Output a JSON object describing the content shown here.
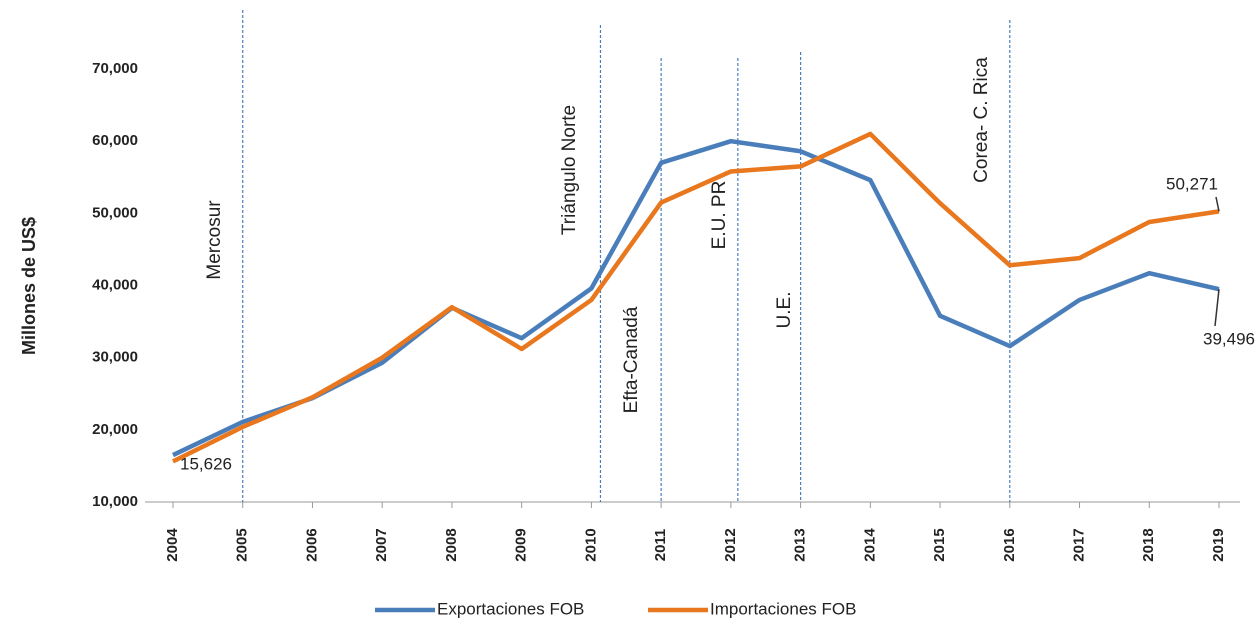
{
  "chart_data": {
    "type": "line",
    "y_label": "Millones de US$",
    "x": [
      2004,
      2005,
      2006,
      2007,
      2008,
      2009,
      2010,
      2011,
      2012,
      2013,
      2014,
      2015,
      2016,
      2017,
      2018,
      2019
    ],
    "xlim": [
      2004,
      2019
    ],
    "xticks": [
      2004,
      2005,
      2006,
      2007,
      2008,
      2009,
      2010,
      2011,
      2012,
      2013,
      2014,
      2015,
      2016,
      2017,
      2018,
      2019
    ],
    "ylim": [
      10000,
      70000
    ],
    "yticks": [
      {
        "value": 10000,
        "label": "10,000"
      },
      {
        "value": 20000,
        "label": "20,000"
      },
      {
        "value": 30000,
        "label": "30,000"
      },
      {
        "value": 40000,
        "label": "40,000"
      },
      {
        "value": 50000,
        "label": "50,000"
      },
      {
        "value": 60000,
        "label": "60,000"
      },
      {
        "value": 70000,
        "label": "70,000"
      }
    ],
    "series": [
      {
        "name": "Exportaciones FOB",
        "color": "#4a7ebb",
        "values": [
          16500,
          21100,
          24400,
          29300,
          36900,
          32700,
          39600,
          57000,
          60000,
          58600,
          54600,
          35800,
          31600,
          38000,
          41700,
          39496
        ],
        "value_labels": [
          null,
          null,
          null,
          null,
          null,
          null,
          null,
          null,
          null,
          null,
          null,
          null,
          null,
          null,
          null,
          "39,496"
        ]
      },
      {
        "name": "Importaciones FOB",
        "color": "#e8771e",
        "values": [
          15626,
          20400,
          24500,
          30000,
          37000,
          31200,
          38000,
          51500,
          55800,
          56500,
          61000,
          51400,
          42800,
          43800,
          48800,
          50271
        ],
        "value_labels": [
          "15,626",
          null,
          null,
          null,
          null,
          null,
          null,
          null,
          null,
          null,
          null,
          null,
          null,
          null,
          null,
          "50,271"
        ]
      }
    ],
    "annotations": [
      {
        "text": "Mercosur",
        "x": 2005
      },
      {
        "text": "Triángulo Norte",
        "x": 2010.13
      },
      {
        "text": "Efta-Canadá",
        "x": 2011
      },
      {
        "text": "E.U. PR",
        "x": 2012.1
      },
      {
        "text": "U.E.",
        "x": 2013
      },
      {
        "text": "Corea- C. Rica",
        "x": 2016
      }
    ]
  }
}
